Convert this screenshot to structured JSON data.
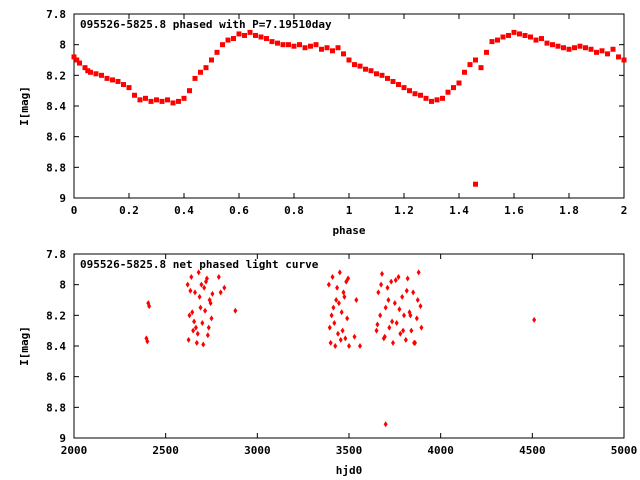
{
  "chart_data": [
    {
      "type": "scatter",
      "title": "095526-5825.8 phased with P=7.19510day",
      "xlabel": "phase",
      "ylabel": "I[mag]",
      "xlim": [
        0,
        2
      ],
      "ylim": [
        9,
        7.8
      ],
      "y_inverted": true,
      "xticks": [
        "0",
        "0.2",
        "0.4",
        "0.6",
        "0.8",
        "1",
        "1.2",
        "1.4",
        "1.6",
        "1.8",
        "2"
      ],
      "yticks": [
        "7.8",
        "8",
        "8.2",
        "8.4",
        "8.6",
        "8.8",
        "9"
      ],
      "marker_color": "#ff0000",
      "series": [
        {
          "x": [
            0.0,
            0.01,
            0.02,
            0.04,
            0.05,
            0.06,
            0.08,
            0.1,
            0.12,
            0.14,
            0.16,
            0.18,
            0.2,
            0.22,
            0.24,
            0.26,
            0.28,
            0.3,
            0.32,
            0.34,
            0.36,
            0.38,
            0.4,
            0.42,
            0.44,
            0.46,
            0.48,
            0.5,
            0.52,
            0.54,
            0.56,
            0.58,
            0.6,
            0.62,
            0.64,
            0.66,
            0.68,
            0.7,
            0.72,
            0.74,
            0.76,
            0.78,
            0.8,
            0.82,
            0.84,
            0.86,
            0.88,
            0.9,
            0.92,
            0.94,
            0.96,
            0.98,
            1.0,
            1.02,
            1.04,
            1.06,
            1.08,
            1.1,
            1.12,
            1.14,
            1.16,
            1.18,
            1.2,
            1.22,
            1.24,
            1.26,
            1.28,
            1.3,
            1.32,
            1.34,
            1.36,
            1.38,
            1.4,
            1.42,
            1.44,
            1.46,
            1.48,
            1.5,
            1.52,
            1.54,
            1.56,
            1.58,
            1.6,
            1.62,
            1.64,
            1.66,
            1.68,
            1.7,
            1.72,
            1.74,
            1.76,
            1.78,
            1.8,
            1.82,
            1.84,
            1.86,
            1.88,
            1.9,
            1.92,
            1.94,
            1.96,
            1.98,
            2.0,
            1.46
          ],
          "y": [
            8.08,
            8.1,
            8.12,
            8.15,
            8.17,
            8.18,
            8.19,
            8.2,
            8.22,
            8.23,
            8.24,
            8.26,
            8.28,
            8.33,
            8.36,
            8.35,
            8.37,
            8.36,
            8.37,
            8.36,
            8.38,
            8.37,
            8.35,
            8.3,
            8.22,
            8.18,
            8.15,
            8.1,
            8.05,
            8.0,
            7.97,
            7.96,
            7.93,
            7.94,
            7.92,
            7.94,
            7.95,
            7.96,
            7.98,
            7.99,
            8.0,
            8.0,
            8.01,
            8.0,
            8.02,
            8.01,
            8.0,
            8.03,
            8.02,
            8.04,
            8.02,
            8.06,
            8.1,
            8.13,
            8.14,
            8.16,
            8.17,
            8.19,
            8.2,
            8.22,
            8.24,
            8.26,
            8.28,
            8.3,
            8.32,
            8.33,
            8.35,
            8.37,
            8.36,
            8.35,
            8.31,
            8.28,
            8.25,
            8.18,
            8.13,
            8.1,
            8.15,
            8.05,
            7.98,
            7.97,
            7.95,
            7.94,
            7.92,
            7.93,
            7.94,
            7.95,
            7.97,
            7.96,
            7.99,
            8.0,
            8.01,
            8.02,
            8.03,
            8.02,
            8.01,
            8.02,
            8.03,
            8.05,
            8.04,
            8.06,
            8.03,
            8.08,
            8.1,
            8.91
          ]
        }
      ]
    },
    {
      "type": "scatter",
      "title": "095526-5825.8 net phased light curve",
      "xlabel": "hjd0",
      "ylabel": "I[mag]",
      "xlim": [
        2000,
        5000
      ],
      "ylim": [
        9,
        7.8
      ],
      "y_inverted": true,
      "xticks": [
        "2000",
        "2500",
        "3000",
        "3500",
        "4000",
        "4500",
        "5000"
      ],
      "yticks": [
        "7.8",
        "8",
        "8.2",
        "8.4",
        "8.6",
        "8.8",
        "9"
      ],
      "marker_color": "#ff0000",
      "series": [
        {
          "x": [
            2395,
            2400,
            2405,
            2410,
            2620,
            2630,
            2640,
            2650,
            2660,
            2670,
            2680,
            2690,
            2700,
            2710,
            2720,
            2730,
            2740,
            2750,
            2625,
            2645,
            2665,
            2685,
            2705,
            2725,
            2745,
            2635,
            2655,
            2675,
            2695,
            2715,
            2735,
            2755,
            2790,
            2800,
            2820,
            2880,
            3390,
            3400,
            3410,
            3420,
            3430,
            3440,
            3450,
            3460,
            3470,
            3480,
            3490,
            3500,
            3395,
            3415,
            3435,
            3455,
            3475,
            3495,
            3405,
            3425,
            3445,
            3465,
            3485,
            3530,
            3540,
            3560,
            3650,
            3660,
            3670,
            3680,
            3690,
            3700,
            3710,
            3720,
            3730,
            3740,
            3750,
            3760,
            3770,
            3780,
            3790,
            3800,
            3810,
            3820,
            3830,
            3840,
            3850,
            3860,
            3870,
            3880,
            3890,
            3655,
            3675,
            3695,
            3715,
            3735,
            3755,
            3775,
            3795,
            3815,
            3835,
            3855,
            3875,
            3895,
            3700,
            4510
          ],
          "y": [
            8.35,
            8.37,
            8.12,
            8.14,
            8.0,
            8.2,
            7.95,
            8.3,
            8.05,
            8.38,
            7.92,
            8.15,
            8.25,
            8.02,
            7.98,
            8.33,
            8.1,
            8.22,
            8.36,
            8.18,
            8.28,
            8.08,
            8.39,
            7.96,
            8.12,
            8.04,
            8.24,
            8.32,
            8.0,
            8.17,
            8.28,
            8.06,
            7.95,
            8.05,
            8.02,
            8.17,
            8.0,
            8.38,
            7.95,
            8.25,
            8.1,
            8.32,
            7.92,
            8.18,
            8.05,
            8.35,
            8.22,
            8.4,
            8.28,
            8.15,
            8.02,
            8.36,
            8.08,
            7.96,
            8.2,
            8.4,
            8.12,
            8.3,
            7.98,
            8.34,
            8.1,
            8.4,
            8.3,
            8.05,
            8.2,
            7.93,
            8.35,
            8.15,
            8.02,
            8.28,
            7.98,
            8.38,
            8.12,
            8.25,
            7.95,
            8.32,
            8.08,
            8.2,
            8.36,
            7.96,
            8.18,
            8.3,
            8.05,
            8.38,
            8.22,
            7.92,
            8.14,
            8.26,
            8.0,
            8.34,
            8.1,
            8.24,
            7.97,
            8.16,
            8.3,
            8.04,
            8.2,
            8.38,
            8.1,
            8.28,
            8.91,
            8.23
          ]
        }
      ]
    }
  ]
}
